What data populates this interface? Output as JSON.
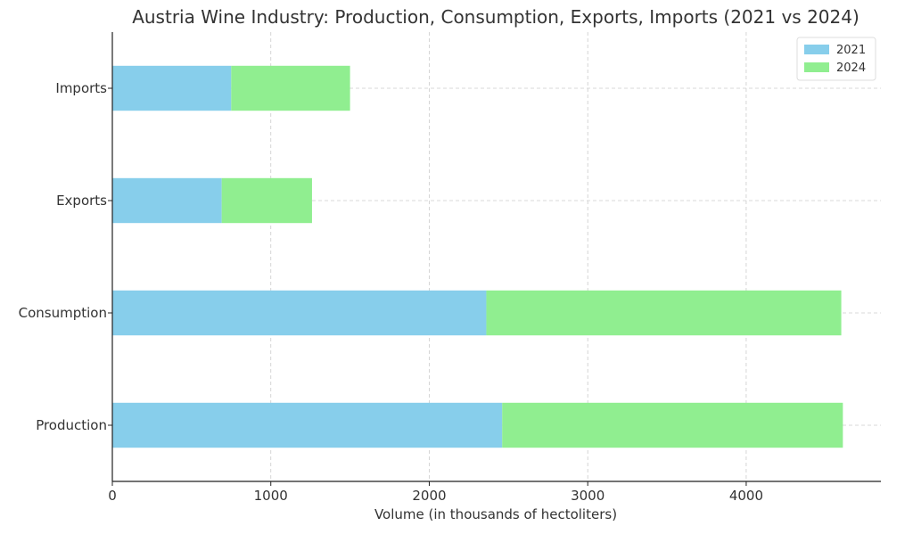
{
  "chart_data": {
    "type": "bar",
    "orientation": "horizontal",
    "stacked": true,
    "title": "Austria Wine Industry: Production, Consumption, Exports, Imports (2021 vs 2024)",
    "xlabel": "Volume (in thousands of hectoliters)",
    "ylabel": "",
    "categories": [
      "Production",
      "Consumption",
      "Exports",
      "Imports"
    ],
    "series": [
      {
        "name": "2021",
        "color": "#87ceeb",
        "values": [
          2460,
          2360,
          690,
          750
        ]
      },
      {
        "name": "2024",
        "color": "#90ee90",
        "values": [
          2150,
          2240,
          570,
          750
        ]
      }
    ],
    "xlim": [
      0,
      4850
    ],
    "xticks": [
      0,
      1000,
      2000,
      3000,
      4000
    ],
    "grid": true,
    "legend": "top-right"
  }
}
